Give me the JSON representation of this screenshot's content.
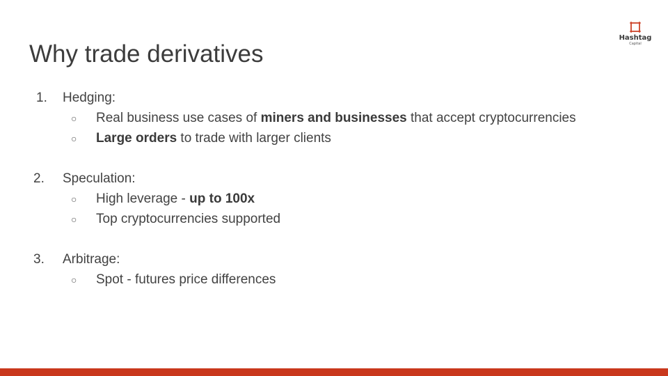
{
  "slide": {
    "title": "Why trade derivatives"
  },
  "logo": {
    "name": "Hashtag",
    "sub": "Capital",
    "icon": "hashtag-frame-icon",
    "color": "#c9381d"
  },
  "items": [
    {
      "number": "1.",
      "heading": "Hedging:",
      "bullets": [
        {
          "pre": "Real business use cases of ",
          "bold": "miners and businesses",
          "post": " that accept cryptocurrencies"
        },
        {
          "pre": "",
          "bold": "Large orders",
          "post": " to trade with larger clients"
        }
      ]
    },
    {
      "number": "2.",
      "heading": "Speculation:",
      "bullets": [
        {
          "pre": "High leverage - ",
          "bold": "up to 100x",
          "post": ""
        },
        {
          "pre": "Top cryptocurrencies supported",
          "bold": "",
          "post": ""
        }
      ]
    },
    {
      "number": "3.",
      "heading": "Arbitrage:",
      "bullets": [
        {
          "pre": "Spot - futures price differences",
          "bold": "",
          "post": ""
        }
      ]
    }
  ],
  "bullet_glyph": "○",
  "footer": {
    "color": "#c9381d"
  }
}
